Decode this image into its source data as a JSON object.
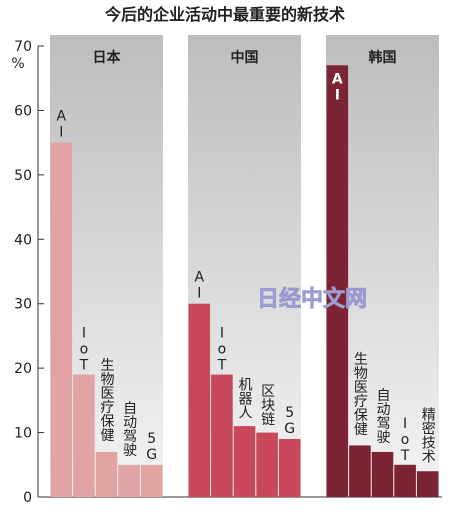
{
  "title": "今后的企业活动中最重要的新技术",
  "y_unit": "%",
  "watermark": "日经中文网",
  "chart_data": [
    {
      "type": "bar",
      "title": "日本",
      "categories": [
        "AI",
        "IoT",
        "生物医疗保健",
        "自动驾驶",
        "5G"
      ],
      "values": [
        55,
        19,
        7,
        5,
        5
      ],
      "color": "#e2a3a3",
      "ylim": [
        0,
        70
      ],
      "yticks": [
        0,
        10,
        20,
        30,
        40,
        50,
        60,
        70
      ]
    },
    {
      "type": "bar",
      "title": "中国",
      "categories": [
        "AI",
        "IoT",
        "机器人",
        "区块链",
        "5G"
      ],
      "values": [
        30,
        19,
        11,
        10,
        9
      ],
      "color": "#c9485a",
      "ylim": [
        0,
        70
      ]
    },
    {
      "type": "bar",
      "title": "韩国",
      "categories": [
        "AI",
        "生物医疗保健",
        "自动驾驶",
        "IoT",
        "精密技术"
      ],
      "values": [
        67,
        8,
        7,
        5,
        4
      ],
      "color": "#7d2434",
      "ylim": [
        0,
        70
      ]
    }
  ]
}
